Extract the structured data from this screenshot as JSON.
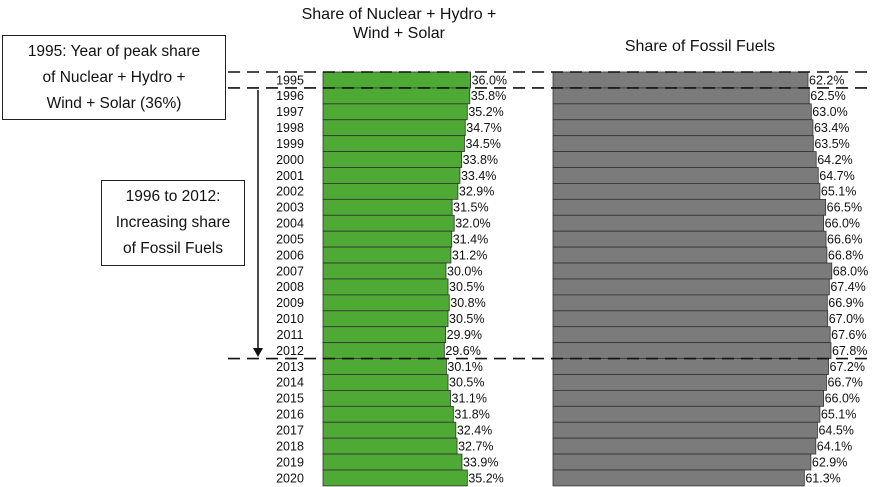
{
  "chart_data": {
    "type": "bar",
    "orientation": "horizontal",
    "categories": [
      "1995",
      "1996",
      "1997",
      "1998",
      "1999",
      "2000",
      "2001",
      "2002",
      "2003",
      "2004",
      "2005",
      "2006",
      "2007",
      "2008",
      "2009",
      "2010",
      "2011",
      "2012",
      "2013",
      "2014",
      "2015",
      "2016",
      "2017",
      "2018",
      "2019",
      "2020"
    ],
    "series": [
      {
        "name": "Share of Nuclear +  Hydro + Wind + Solar",
        "color": "#4ea935",
        "values": [
          36.0,
          35.8,
          35.2,
          34.7,
          34.5,
          33.8,
          33.4,
          32.9,
          31.5,
          32.0,
          31.4,
          31.2,
          30.0,
          30.5,
          30.8,
          30.5,
          29.9,
          29.6,
          30.1,
          30.5,
          31.1,
          31.8,
          32.4,
          32.7,
          33.9,
          35.2
        ],
        "value_labels": [
          "36.0%",
          "35.8%",
          "35.2%",
          "34.7%",
          "34.5%",
          "33.8%",
          "33.4%",
          "32.9%",
          "31.5%",
          "32.0%",
          "31.4%",
          "31.2%",
          "30.0%",
          "30.5%",
          "30.8%",
          "30.5%",
          "29.9%",
          "29.6%",
          "30.1%",
          "30.5%",
          "31.1%",
          "31.8%",
          "32.4%",
          "32.7%",
          "33.9%",
          "35.2%"
        ]
      },
      {
        "name": "Share of Fossil Fuels",
        "color": "#7b7b7b",
        "values": [
          62.2,
          62.5,
          63.0,
          63.4,
          63.5,
          64.2,
          64.7,
          65.1,
          66.5,
          66.0,
          66.6,
          66.8,
          68.0,
          67.4,
          66.9,
          67.0,
          67.6,
          67.8,
          67.2,
          66.7,
          66.0,
          65.1,
          64.5,
          64.1,
          62.9,
          61.3
        ],
        "value_labels": [
          "62.2%",
          "62.5%",
          "63.0%",
          "63.4%",
          "63.5%",
          "64.2%",
          "64.7%",
          "65.1%",
          "66.5%",
          "66.0%",
          "66.6%",
          "66.8%",
          "68.0%",
          "67.4%",
          "66.9%",
          "67.0%",
          "67.6%",
          "67.8%",
          "67.2%",
          "66.7%",
          "66.0%",
          "65.1%",
          "64.5%",
          "64.1%",
          "62.9%",
          "61.3%"
        ]
      }
    ],
    "annotations": [
      "1995: Year of peak share of Nuclear + Hydro + Wind + Solar (36%)",
      "1996 to 2012: Increasing share of Fossil Fuels"
    ]
  }
}
